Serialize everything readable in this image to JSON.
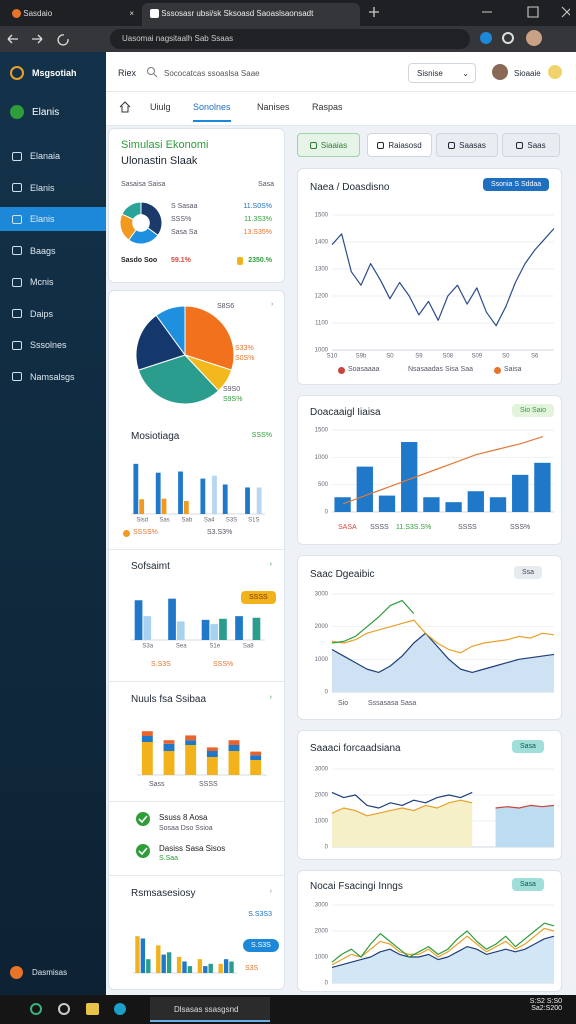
{
  "browser": {
    "tabs": [
      "Sasdaio",
      "Sssosasr ubsi/sk Sksoasd Saoaslsaonsadt"
    ],
    "url": "Uasomai nagsitaalh Sab Ssaas"
  },
  "sidebar": {
    "brand": "Msgsotiah",
    "account": "Elanis",
    "items": [
      "Elanaia",
      "Elanis",
      "Elanis",
      "Baags",
      "Mcnis",
      "Daips",
      "Sssolnes",
      "Namsalsgs"
    ],
    "active": 2,
    "footer": "Dasmisas"
  },
  "header": {
    "section": "Riex",
    "search": "Sococatcas ssoaslsa Saae",
    "dropdown": "Sisnise",
    "user": "Sioaaie"
  },
  "tabs": {
    "items": [
      "Uiulg",
      "Sonolnes",
      "Nanises",
      "Raspas"
    ],
    "active": 1
  },
  "summary": {
    "title": "Simulasi Ekonomi",
    "subtitle": "Ulonastin Slaak",
    "label": "Sasaisa Saisa",
    "label_right": "Sasa",
    "rows": [
      [
        "S Sasaa",
        "11.S0S%"
      ],
      [
        "SSS%",
        "11.3S3%"
      ],
      [
        "Sasa Sa",
        "13.S35%"
      ]
    ],
    "footer": "Sasdo Soo",
    "footer_value": "59.1%",
    "footer_right": "2350.%"
  },
  "buttons": [
    "Siaaias",
    "Raiasosd",
    "Saasas",
    "Saas"
  ],
  "checklist": [
    [
      "Ssuss 8 Aosa",
      "Sosaa Dso Ssioa"
    ],
    [
      "Dasiss Sasa Sisos",
      "S.Saa"
    ]
  ],
  "taskbar": {
    "app": "Dlsasas ssasgsnd",
    "time": "S:S2 S:S0",
    "date": "Sa2:S200"
  },
  "chart_data": [
    {
      "type": "pie",
      "donut": true,
      "values": [
        35,
        25,
        22,
        18
      ],
      "colors": [
        "#1b3a6b",
        "#1f8fe0",
        "#f29a1f",
        "#2aa39b"
      ]
    },
    {
      "type": "pie",
      "values": [
        30,
        8,
        32,
        20,
        10
      ],
      "colors": [
        "#f2711c",
        "#f2b81c",
        "#2a9d8f",
        "#14386b",
        "#1f8fe0"
      ],
      "annotations": [
        "S8S6",
        "S33%",
        "S0S%",
        "S9S0",
        "S9S%"
      ]
    },
    {
      "type": "bar",
      "title": "Mosiotiaga",
      "annotations": [
        "SSS%",
        "SSSS%",
        "S3.S3%"
      ],
      "categories": [
        "Sisd",
        "Sas",
        "Sab",
        "Sa4",
        "S3S",
        "S1S"
      ],
      "ylim": [
        0,
        100
      ],
      "series": [
        {
          "color": "#1f78c8",
          "values": [
            85,
            70,
            72,
            60,
            50,
            45
          ]
        },
        {
          "color": "#f29a1f",
          "values": [
            25,
            26,
            22,
            0,
            0,
            0
          ]
        },
        {
          "color": "#b7d7f0",
          "values": [
            0,
            0,
            0,
            65,
            0,
            45
          ]
        }
      ]
    },
    {
      "type": "bar",
      "title": "Sofsaimt",
      "annotations": [
        "SSSS",
        "S.S3S",
        "SSS%"
      ],
      "categories": [
        "S3a",
        "Sea",
        "S1e",
        "Sa8"
      ],
      "ylim": [
        0,
        100
      ],
      "series": [
        {
          "color": "#1f78c8",
          "values": [
            75,
            78,
            38,
            45
          ]
        },
        {
          "color": "#a9d1f0",
          "values": [
            45,
            35,
            30,
            0
          ]
        },
        {
          "color": "#2a9d8f",
          "values": [
            0,
            0,
            40,
            42
          ]
        }
      ]
    },
    {
      "type": "bar",
      "title": "Nuuls fsa Ssibaa",
      "stacked": true,
      "annotations": [
        "Sass",
        "SSSS"
      ],
      "ylim": [
        0,
        100
      ],
      "series": [
        {
          "color": "#f2b21c",
          "values": [
            55,
            40,
            50,
            30,
            40,
            25
          ]
        },
        {
          "color": "#1f78c8",
          "values": [
            10,
            12,
            8,
            10,
            10,
            8
          ]
        },
        {
          "color": "#e8642a",
          "values": [
            8,
            6,
            8,
            6,
            8,
            6
          ]
        }
      ]
    },
    {
      "type": "bar",
      "title": "Rsmsasesiosy",
      "annotations": [
        "S.S3S3",
        "S.S3S",
        "S3S"
      ],
      "ylim": [
        0,
        100
      ],
      "series": [
        {
          "color": "#f2b21c",
          "values": [
            80,
            60,
            35,
            30,
            20
          ]
        },
        {
          "color": "#1f78c8",
          "values": [
            75,
            40,
            25,
            15,
            30
          ]
        },
        {
          "color": "#2a9d8f",
          "values": [
            30,
            45,
            15,
            20,
            25
          ]
        }
      ]
    },
    {
      "type": "line",
      "title": "Naea / Doasdisno",
      "button": "Ssonia S Sddaa",
      "grid": true,
      "ylim": [
        1000,
        1500
      ],
      "yticks": [
        1000,
        1100,
        1200,
        1300,
        1400,
        1500
      ],
      "categories": [
        "S10",
        null,
        null,
        "S9b",
        null,
        null,
        "S0",
        null,
        null,
        "S9",
        null,
        null,
        "S08",
        null,
        null,
        "S09",
        null,
        null,
        "S0",
        null,
        null,
        "S6",
        null,
        null
      ],
      "series": [
        {
          "color": "#2b4c8c",
          "values": [
            1390,
            1430,
            1290,
            1240,
            1320,
            1260,
            1190,
            1250,
            1200,
            1130,
            1180,
            1110,
            1200,
            1240,
            1170,
            1230,
            1140,
            1090,
            1160,
            1250,
            1320,
            1370,
            1410,
            1450
          ]
        }
      ],
      "annotations": [
        "Soasaaaa",
        "Nsasaadas Sisa Saa",
        "Saisa"
      ]
    },
    {
      "type": "bar",
      "title": "Doacaaigl Iiaisa",
      "button": "Sio Saio",
      "grid": true,
      "ylim": [
        0,
        1500
      ],
      "yticks": [
        0,
        500,
        1000,
        1500
      ],
      "series": [
        {
          "color": "#1f78c8",
          "values": [
            270,
            830,
            300,
            1280,
            270,
            180,
            380,
            270,
            680,
            900
          ]
        },
        {
          "type": "line",
          "color": "#e07a3a",
          "values": [
            150,
            300,
            450,
            600,
            750,
            900,
            1050,
            1150,
            1250,
            1380
          ]
        }
      ],
      "annotations": [
        "SASA",
        "SSSS",
        "11.S3S.S%",
        "SSSS",
        "SSS%"
      ]
    },
    {
      "type": "line",
      "title": "Saac Dgeaibic",
      "button": "Ssa",
      "grid": true,
      "ylim": [
        0,
        3000
      ],
      "yticks": [
        0,
        1000,
        2000,
        3000
      ],
      "series": [
        {
          "color": "#1f3f7a",
          "area": "#cfe2f3",
          "values": [
            1300,
            1100,
            900,
            700,
            600,
            800,
            1100,
            1500,
            1800,
            1400,
            1000,
            700,
            600,
            700,
            800,
            900,
            1000,
            1050,
            1100,
            1150
          ]
        },
        {
          "color": "#e8a02a",
          "values": [
            1550,
            1500,
            1600,
            1800,
            1900,
            2000,
            2100,
            2200,
            1800,
            1500,
            1300,
            1200,
            1400,
            1500,
            1550,
            1600,
            1700,
            1650,
            1800,
            1750
          ]
        },
        {
          "color": "#2e9d3a",
          "values": [
            1500,
            1550,
            1700,
            2000,
            2300,
            2650,
            2800,
            2400,
            null,
            null,
            null,
            null,
            null,
            null,
            null,
            null,
            null,
            null,
            null,
            null
          ]
        }
      ],
      "annotations": [
        "Sio",
        "Sssasasa Sasa"
      ]
    },
    {
      "type": "line",
      "title": "Saaaci forcaadsiana",
      "button": "Sasa",
      "grid": true,
      "ylim": [
        0,
        3000
      ],
      "yticks": [
        0,
        1000,
        2000,
        3000
      ],
      "series": [
        {
          "color": "#e8a02a",
          "area": "#f6f0c8",
          "values": [
            1300,
            1500,
            1400,
            1200,
            1300,
            1400,
            1500,
            1400,
            1600,
            1500,
            1700,
            1800,
            1700,
            null,
            null,
            null,
            null,
            null,
            null,
            null
          ]
        },
        {
          "color": "#1f3f7a",
          "values": [
            2100,
            1900,
            2000,
            1600,
            1500,
            1700,
            1600,
            1800,
            1700,
            1900,
            2000,
            1900,
            2100,
            null,
            null,
            null,
            null,
            null,
            null,
            null
          ]
        },
        {
          "color": "#c8453a",
          "area": "#bcdcf2",
          "values": [
            null,
            null,
            null,
            null,
            null,
            null,
            null,
            null,
            null,
            null,
            null,
            null,
            null,
            null,
            1500,
            1550,
            1500,
            1600,
            1550,
            1600
          ]
        }
      ]
    },
    {
      "type": "line",
      "title": "Nocai Fsacingi Inngs",
      "button": "Sasa",
      "grid": true,
      "ylim": [
        0,
        3000
      ],
      "yticks": [
        0,
        1000,
        2000,
        3000
      ],
      "series": [
        {
          "color": "#1f3f7a",
          "area": "#d3e6f5",
          "values": [
            600,
            700,
            800,
            900,
            1000,
            1200,
            1300,
            1100,
            1000,
            1000,
            1100,
            900,
            1000,
            1200,
            1400,
            1300,
            1100,
            1200,
            1300,
            1200,
            1300,
            1500,
            1700,
            1800
          ]
        },
        {
          "color": "#e8a02a",
          "values": [
            700,
            900,
            1100,
            1000,
            1300,
            1600,
            1500,
            1200,
            1100,
            1100,
            1300,
            1000,
            1200,
            1500,
            1800,
            1500,
            1200,
            1400,
            1600,
            1300,
            1500,
            1800,
            2100,
            2000
          ]
        },
        {
          "color": "#2e9d3a",
          "values": [
            800,
            1100,
            1300,
            1000,
            1500,
            1900,
            1600,
            1300,
            1000,
            1200,
            1400,
            1100,
            1300,
            1700,
            2000,
            1600,
            1300,
            1500,
            1800,
            1400,
            1700,
            2000,
            2300,
            2200
          ]
        }
      ]
    }
  ]
}
